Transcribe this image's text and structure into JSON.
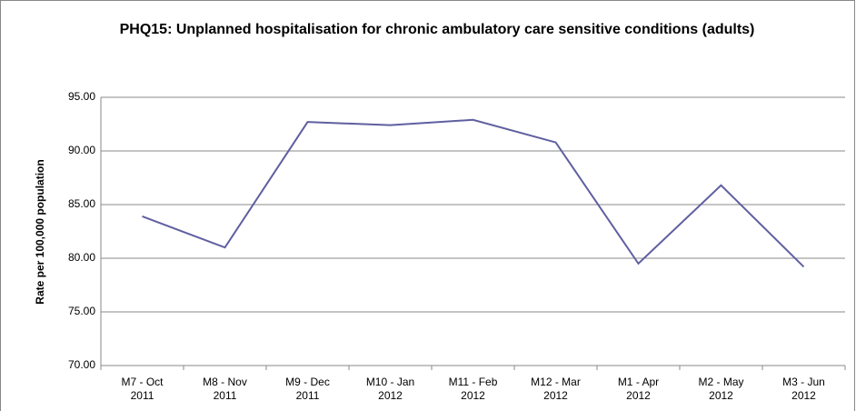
{
  "chart_data": {
    "type": "line",
    "title": "PHQ15: Unplanned hospitalisation for chronic ambulatory care sensitive conditions (adults)",
    "y_label": "Rate per 100,000 population",
    "categories": [
      "M7 - Oct\n2011",
      "M8 - Nov\n2011",
      "M9 - Dec\n2011",
      "M10 - Jan\n2012",
      "M11 - Feb\n2012",
      "M12 - Mar\n2012",
      "M1 - Apr\n2012",
      "M2 - May\n2012",
      "M3 - Jun\n2012"
    ],
    "series": [
      {
        "name": "PHQ15",
        "color": "#5f5fa0",
        "values": [
          83.9,
          81.0,
          92.7,
          92.4,
          92.9,
          90.8,
          79.5,
          86.8,
          79.2
        ]
      }
    ],
    "ylim": [
      70,
      95
    ],
    "yticks": [
      {
        "value": 70,
        "label": "70.00"
      },
      {
        "value": 75,
        "label": "75.00"
      },
      {
        "value": 80,
        "label": "80.00"
      },
      {
        "value": 85,
        "label": "85.00"
      },
      {
        "value": 90,
        "label": "90.00"
      },
      {
        "value": 95,
        "label": "95.00"
      }
    ],
    "grid": true
  }
}
